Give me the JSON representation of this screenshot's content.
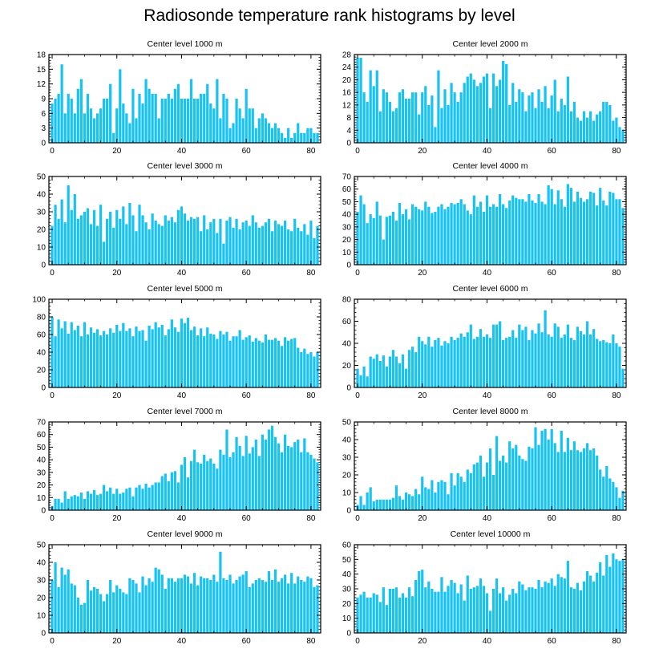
{
  "figure": {
    "title": "Radiosonde temperature rank histograms by level",
    "bar_color": "#18c3f3",
    "x_ticks": [
      0,
      20,
      40,
      60,
      80
    ]
  },
  "chart_data": [
    {
      "type": "bar",
      "title": "Center level 1000 m",
      "xlim": [
        -1,
        83
      ],
      "ylim": [
        0,
        18
      ],
      "yticks": [
        0,
        3,
        6,
        9,
        12,
        15,
        18
      ],
      "x_start": 0,
      "values": [
        8,
        9,
        10,
        16,
        6,
        10,
        9,
        6,
        11,
        13,
        6,
        10,
        7,
        5,
        6,
        7,
        9,
        9,
        12,
        2,
        7,
        15,
        8,
        6,
        4,
        11,
        5,
        10,
        8,
        13,
        11,
        10,
        10,
        5,
        9,
        9,
        10,
        9,
        11,
        12,
        9,
        9,
        9,
        13,
        9,
        9,
        10,
        10,
        12,
        8,
        7,
        13,
        5,
        10,
        9,
        3,
        4,
        9,
        7,
        5,
        11,
        7,
        7,
        3,
        5,
        6,
        5,
        4,
        3,
        4,
        3,
        2,
        1,
        3,
        1,
        2,
        4,
        2,
        2,
        3,
        3,
        2,
        2
      ]
    },
    {
      "type": "bar",
      "title": "Center level 2000 m",
      "xlim": [
        -1,
        83
      ],
      "ylim": [
        0,
        28
      ],
      "yticks": [
        0,
        4,
        8,
        12,
        16,
        20,
        24,
        28
      ],
      "x_start": 0,
      "values": [
        27,
        27,
        16,
        13,
        23,
        18,
        23,
        10,
        17,
        16,
        13,
        10,
        11,
        16,
        17,
        14,
        14,
        16,
        16,
        9,
        16,
        18,
        12,
        15,
        5,
        23,
        11,
        17,
        12,
        19,
        16,
        13,
        16,
        19,
        21,
        22,
        20,
        18,
        19,
        21,
        22,
        11,
        22,
        18,
        20,
        26,
        25,
        12,
        19,
        13,
        17,
        16,
        10,
        15,
        16,
        11,
        17,
        13,
        18,
        11,
        15,
        20,
        10,
        14,
        12,
        21,
        10,
        13,
        8,
        7,
        10,
        8,
        10,
        7,
        9,
        10,
        13,
        13,
        12,
        7,
        8,
        5,
        4
      ]
    },
    {
      "type": "bar",
      "title": "Center level 3000 m",
      "xlim": [
        -1,
        83
      ],
      "ylim": [
        0,
        50
      ],
      "yticks": [
        0,
        10,
        20,
        30,
        40,
        50
      ],
      "x_start": 0,
      "values": [
        22,
        34,
        26,
        37,
        24,
        45,
        31,
        40,
        26,
        28,
        30,
        32,
        23,
        31,
        22,
        34,
        13,
        26,
        30,
        21,
        31,
        26,
        33,
        23,
        35,
        28,
        19,
        34,
        28,
        24,
        20,
        29,
        25,
        23,
        22,
        28,
        25,
        27,
        24,
        31,
        33,
        29,
        25,
        27,
        26,
        27,
        19,
        28,
        20,
        24,
        26,
        18,
        26,
        12,
        25,
        27,
        21,
        26,
        20,
        24,
        25,
        22,
        28,
        24,
        21,
        22,
        24,
        26,
        19,
        25,
        23,
        22,
        25,
        20,
        19,
        26,
        21,
        19,
        23,
        17,
        25,
        15,
        22
      ]
    },
    {
      "type": "bar",
      "title": "Center level 4000 m",
      "xlim": [
        -1,
        83
      ],
      "ylim": [
        0,
        70
      ],
      "yticks": [
        0,
        10,
        20,
        30,
        40,
        50,
        60,
        70
      ],
      "x_start": 0,
      "values": [
        42,
        55,
        48,
        33,
        40,
        37,
        50,
        39,
        20,
        38,
        39,
        42,
        35,
        49,
        40,
        44,
        36,
        48,
        46,
        44,
        43,
        50,
        46,
        41,
        42,
        46,
        48,
        44,
        46,
        49,
        48,
        49,
        52,
        48,
        43,
        40,
        55,
        46,
        50,
        42,
        55,
        46,
        48,
        46,
        56,
        48,
        45,
        51,
        55,
        53,
        52,
        52,
        50,
        56,
        51,
        49,
        56,
        50,
        48,
        63,
        60,
        48,
        59,
        52,
        46,
        64,
        61,
        50,
        58,
        53,
        50,
        52,
        58,
        57,
        47,
        61,
        51,
        47,
        58,
        57,
        52,
        52,
        45
      ]
    },
    {
      "type": "bar",
      "title": "Center level 5000 m",
      "xlim": [
        -1,
        83
      ],
      "ylim": [
        0,
        100
      ],
      "yticks": [
        0,
        20,
        40,
        60,
        80,
        100
      ],
      "x_start": 0,
      "values": [
        80,
        58,
        77,
        67,
        75,
        61,
        74,
        65,
        70,
        58,
        74,
        60,
        68,
        62,
        66,
        59,
        64,
        60,
        67,
        62,
        71,
        64,
        73,
        64,
        67,
        58,
        69,
        64,
        65,
        53,
        70,
        66,
        74,
        68,
        71,
        59,
        66,
        77,
        68,
        63,
        78,
        73,
        79,
        65,
        69,
        59,
        67,
        58,
        68,
        61,
        60,
        55,
        64,
        60,
        63,
        53,
        58,
        58,
        65,
        54,
        57,
        59,
        52,
        56,
        53,
        51,
        60,
        54,
        54,
        56,
        53,
        47,
        57,
        53,
        55,
        56,
        45,
        40,
        44,
        38,
        40,
        35,
        40
      ]
    },
    {
      "type": "bar",
      "title": "Center level 6000 m",
      "xlim": [
        -1,
        83
      ],
      "ylim": [
        0,
        80
      ],
      "yticks": [
        0,
        20,
        40,
        60,
        80
      ],
      "x_start": 0,
      "values": [
        17,
        11,
        19,
        10,
        28,
        26,
        30,
        24,
        29,
        19,
        28,
        34,
        28,
        22,
        30,
        17,
        34,
        37,
        32,
        46,
        42,
        39,
        46,
        37,
        43,
        45,
        38,
        42,
        40,
        46,
        43,
        45,
        49,
        46,
        50,
        57,
        44,
        46,
        53,
        46,
        48,
        45,
        57,
        57,
        60,
        43,
        45,
        46,
        52,
        45,
        57,
        52,
        55,
        43,
        52,
        49,
        58,
        50,
        70,
        48,
        46,
        58,
        55,
        45,
        48,
        57,
        45,
        43,
        55,
        51,
        48,
        60,
        48,
        53,
        44,
        42,
        43,
        41,
        40,
        48,
        40,
        37,
        17
      ]
    },
    {
      "type": "bar",
      "title": "Center level 7000 m",
      "xlim": [
        -1,
        83
      ],
      "ylim": [
        0,
        70
      ],
      "yticks": [
        0,
        10,
        20,
        30,
        40,
        50,
        60,
        70
      ],
      "x_start": 0,
      "values": [
        3,
        9,
        9,
        6,
        15,
        9,
        11,
        12,
        11,
        14,
        9,
        15,
        13,
        16,
        12,
        13,
        20,
        15,
        18,
        13,
        17,
        13,
        14,
        17,
        18,
        11,
        18,
        20,
        17,
        21,
        18,
        20,
        22,
        22,
        27,
        29,
        23,
        30,
        31,
        22,
        36,
        42,
        26,
        39,
        48,
        38,
        37,
        44,
        39,
        41,
        37,
        33,
        48,
        44,
        64,
        42,
        46,
        58,
        51,
        43,
        59,
        45,
        50,
        56,
        43,
        60,
        56,
        64,
        67,
        58,
        53,
        46,
        60,
        51,
        50,
        54,
        56,
        46,
        57,
        46,
        44,
        41,
        38
      ]
    },
    {
      "type": "bar",
      "title": "Center level 8000 m",
      "xlim": [
        -1,
        83
      ],
      "ylim": [
        0,
        50
      ],
      "yticks": [
        0,
        10,
        20,
        30,
        40,
        50
      ],
      "x_start": 0,
      "values": [
        3,
        8,
        3,
        10,
        13,
        5,
        6,
        6,
        6,
        6,
        6,
        7,
        14,
        8,
        6,
        10,
        9,
        8,
        12,
        9,
        19,
        13,
        12,
        17,
        10,
        16,
        17,
        16,
        9,
        21,
        14,
        21,
        19,
        16,
        23,
        21,
        26,
        27,
        31,
        19,
        27,
        35,
        20,
        42,
        28,
        31,
        27,
        39,
        35,
        37,
        31,
        29,
        28,
        36,
        35,
        47,
        37,
        45,
        46,
        40,
        46,
        38,
        33,
        45,
        33,
        41,
        34,
        39,
        34,
        33,
        35,
        38,
        34,
        35,
        31,
        23,
        19,
        25,
        18,
        16,
        13,
        7,
        11
      ]
    },
    {
      "type": "bar",
      "title": "Center level 9000 m",
      "xlim": [
        -1,
        83
      ],
      "ylim": [
        0,
        50
      ],
      "yticks": [
        0,
        10,
        20,
        30,
        40,
        50
      ],
      "x_start": 0,
      "values": [
        30,
        40,
        26,
        37,
        33,
        36,
        28,
        27,
        20,
        16,
        17,
        30,
        24,
        26,
        25,
        22,
        18,
        22,
        30,
        23,
        27,
        25,
        23,
        22,
        31,
        30,
        28,
        23,
        32,
        27,
        31,
        29,
        37,
        36,
        33,
        25,
        31,
        31,
        29,
        31,
        31,
        33,
        32,
        28,
        34,
        27,
        32,
        31,
        31,
        30,
        33,
        29,
        46,
        31,
        30,
        33,
        28,
        30,
        32,
        33,
        35,
        26,
        28,
        30,
        31,
        30,
        29,
        35,
        30,
        36,
        29,
        31,
        33,
        28,
        34,
        28,
        32,
        30,
        29,
        32,
        31,
        26,
        27
      ]
    },
    {
      "type": "bar",
      "title": "Center level 10000 m",
      "xlim": [
        -1,
        83
      ],
      "ylim": [
        0,
        60
      ],
      "yticks": [
        0,
        10,
        20,
        30,
        40,
        50,
        60
      ],
      "x_start": 0,
      "values": [
        24,
        26,
        28,
        24,
        24,
        27,
        26,
        21,
        31,
        19,
        30,
        30,
        31,
        24,
        27,
        24,
        31,
        25,
        36,
        42,
        43,
        31,
        35,
        30,
        28,
        28,
        38,
        28,
        32,
        36,
        34,
        27,
        33,
        22,
        39,
        30,
        31,
        32,
        37,
        32,
        27,
        15,
        30,
        37,
        27,
        31,
        22,
        26,
        30,
        27,
        35,
        33,
        29,
        31,
        31,
        30,
        36,
        31,
        35,
        34,
        37,
        32,
        40,
        38,
        37,
        49,
        31,
        30,
        34,
        29,
        35,
        42,
        39,
        35,
        41,
        48,
        39,
        53,
        45,
        54,
        50,
        49,
        50
      ]
    }
  ]
}
